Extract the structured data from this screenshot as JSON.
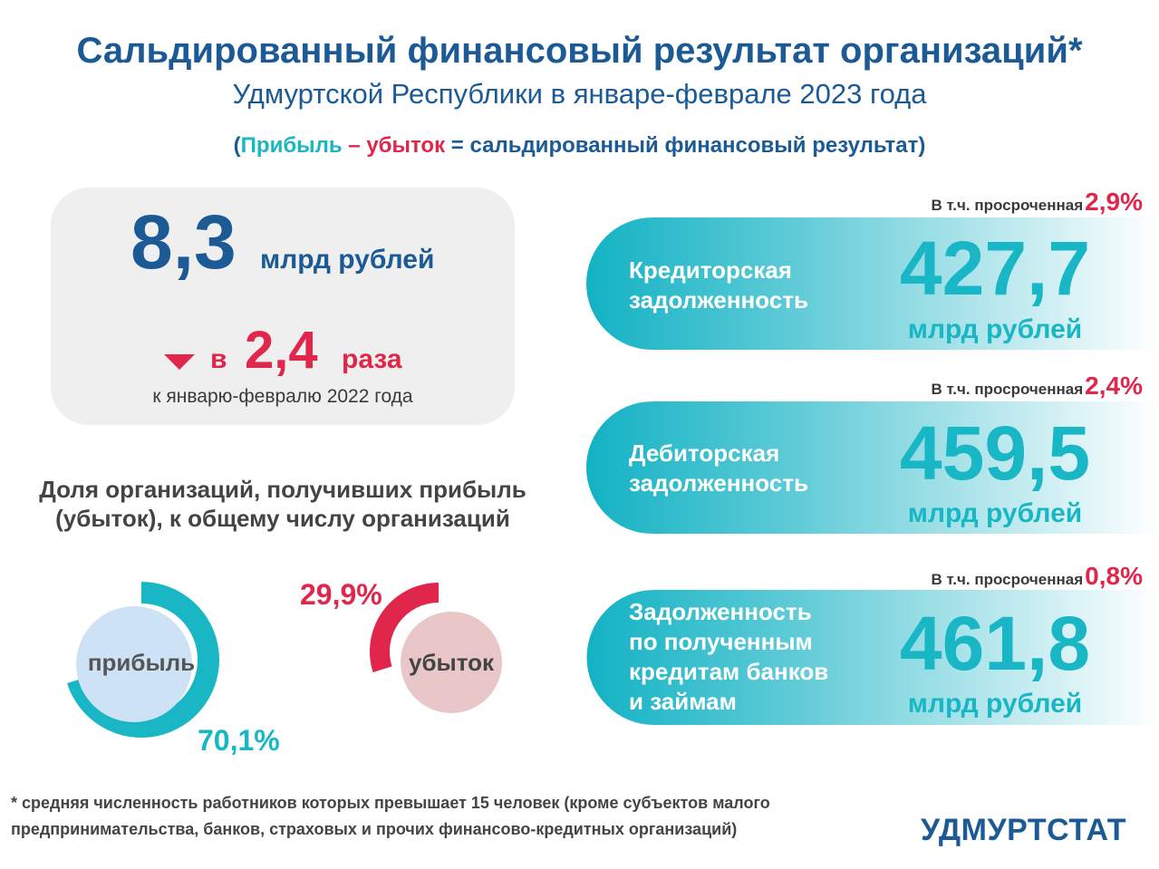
{
  "header": {
    "title": "Сальдированный финансовый результат организаций*",
    "subtitle": "Удмуртской Республики в январе-феврале 2023 года",
    "formula_open": "(",
    "formula_profit": "Прибыль",
    "formula_minus": " – ",
    "formula_loss": "убыток",
    "formula_rest": " = сальдированный финансовый результат)"
  },
  "summary": {
    "value": "8,3",
    "unit": "млрд рублей",
    "change_prefix": "в",
    "change_value": "2,4",
    "change_suffix": "раза",
    "change_note": "к январю-февралю 2022 года"
  },
  "share": {
    "title_line1": "Доля организаций, получивших прибыль",
    "title_line2": "(убыток), к общему числу организаций"
  },
  "chart_data": [
    {
      "type": "pie",
      "label": "прибыль",
      "values": [
        70.1,
        29.9
      ],
      "value_label": "70,1%",
      "color": "#19b6c6",
      "center_color": "#cde3f5"
    },
    {
      "type": "pie",
      "label": "убыток",
      "values": [
        29.9,
        70.1
      ],
      "value_label": "29,9%",
      "color": "#e0264a",
      "center_color": "#e9c6c8"
    }
  ],
  "cards": [
    {
      "overdue_label": "В т.ч. просроченная",
      "overdue_pct": "2,9%",
      "label_lines": [
        "Кредиторская",
        "задолженность"
      ],
      "value": "427,7",
      "unit": "млрд рублей"
    },
    {
      "overdue_label": "В т.ч. просроченная",
      "overdue_pct": "2,4%",
      "label_lines": [
        "Дебиторская",
        "задолженность"
      ],
      "value": "459,5",
      "unit": "млрд рублей"
    },
    {
      "overdue_label": "В т.ч. просроченная",
      "overdue_pct": "0,8%",
      "label_lines": [
        "Задолженность",
        "по полученным",
        "кредитам банков",
        "и займам"
      ],
      "value": "461,8",
      "unit": "млрд рублей"
    }
  ],
  "colors": {
    "primary": "#1c5a96",
    "teal": "#19b6c6",
    "red": "#e0264a"
  },
  "footnote": {
    "line1": "* средняя численность работников которых превышает 15 человек (кроме субъектов малого",
    "line2": "предпринимательства, банков, страховых и прочих финансово-кредитных организаций)"
  },
  "logo": "УДМУРТСТАТ"
}
